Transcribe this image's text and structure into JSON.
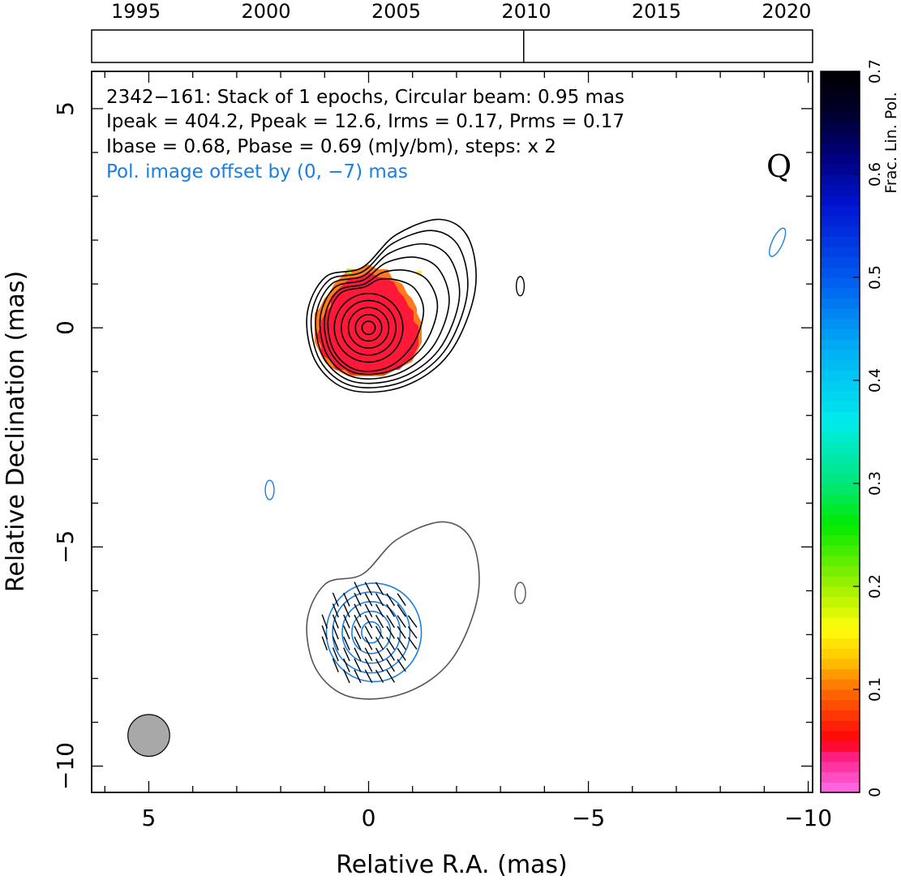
{
  "chart_data": {
    "type": "contour",
    "source": "2342-161",
    "band": "Q",
    "annotations": [
      "2342−161: Stack of 1 epochs, Circular beam: 0.95 mas",
      "Ipeak = 404.2, Ppeak = 12.6, Irms = 0.17, Prms = 0.17",
      "Ibase = 0.68, Pbase = 0.69 (mJy/bm), steps: x 2"
    ],
    "offset_note": "Pol. image offset by (0, −7) mas",
    "xlabel": "Relative R.A. (mas)",
    "ylabel": "Relative Declination (mas)",
    "xlim": [
      6.3,
      -10.1
    ],
    "ylim": [
      -10.6,
      5.85
    ],
    "x_ticks": [
      5,
      0,
      -5,
      -10
    ],
    "x_tick_labels": [
      "5",
      "0",
      "−5",
      "−10"
    ],
    "y_ticks": [
      5,
      0,
      -5,
      -10
    ],
    "y_tick_labels": [
      "5",
      "0",
      "−5",
      "−10"
    ],
    "timeline": {
      "year_range": [
        1993.3,
        2021.0
      ],
      "tick_years": [
        1995,
        2000,
        2005,
        2010,
        2015,
        2020
      ],
      "tick_labels": [
        "1995",
        "2000",
        "2005",
        "2010",
        "2015",
        "2020"
      ],
      "epochs": [
        2009.9
      ]
    },
    "colorbar": {
      "label": "Frac. Lin. Pol.",
      "range": [
        0,
        0.7
      ],
      "ticks": [
        0,
        0.1,
        0.2,
        0.3,
        0.4,
        0.5,
        0.6,
        0.7
      ],
      "tick_labels": [
        "0",
        "0.1",
        "0.2",
        "0.3",
        "0.4",
        "0.5",
        "0.6",
        "0.7"
      ]
    },
    "beam": {
      "x": 5.0,
      "y": -9.3,
      "diameter_mas": 0.95
    },
    "stokes_i_core": {
      "x": 0.0,
      "y": 0.0
    },
    "polarization_core": {
      "x": 0.0,
      "y": -7.0
    },
    "colors": {
      "frame": "#000000",
      "stokes_i_contour": "#000000",
      "stokes_i_offset_contour": "#555555",
      "pol_contour": "#1a7fe0",
      "offset_note": "#1a7fe0",
      "beam_fill": "#a8a8a8",
      "fractional_pol_fill": "#ff1838",
      "fractional_pol_edge": "#ff7a1a"
    }
  }
}
